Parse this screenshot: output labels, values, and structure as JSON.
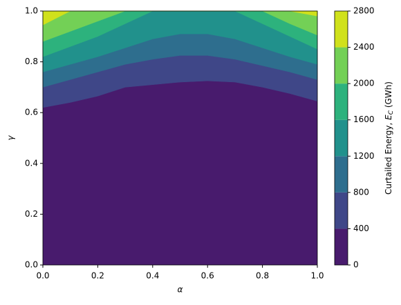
{
  "chart_data": {
    "type": "contour",
    "xlabel": "α",
    "ylabel": "γ",
    "colorbar_label": [
      "Curtailed Energy, ",
      "E",
      "C",
      " (GWh)"
    ],
    "x": [
      0,
      0.1,
      0.2,
      0.3,
      0.4,
      0.5,
      0.6,
      0.7,
      0.8,
      0.9,
      1.0
    ],
    "levels": [
      0,
      400,
      800,
      1200,
      1600,
      2000,
      2400,
      2800
    ],
    "colors": [
      "#481b6d",
      "#3f4788",
      "#2e6e8e",
      "#21918c",
      "#2db27d",
      "#73d056",
      "#d0e11c"
    ],
    "contours": [
      {
        "values": [
          0.62,
          0.64,
          0.665,
          0.7,
          0.71,
          0.72,
          0.725,
          0.72,
          0.7,
          0.675,
          0.645
        ]
      },
      {
        "values": [
          0.7,
          0.73,
          0.76,
          0.79,
          0.81,
          0.825,
          0.825,
          0.81,
          0.785,
          0.76,
          0.73
        ]
      },
      {
        "values": [
          0.76,
          0.79,
          0.82,
          0.855,
          0.89,
          0.91,
          0.91,
          0.89,
          0.855,
          0.82,
          0.79
        ]
      },
      {
        "values": [
          0.82,
          0.86,
          0.9,
          0.95,
          1,
          1,
          1,
          1,
          0.95,
          0.9,
          0.85
        ]
      },
      {
        "values": [
          0.88,
          0.92,
          0.96,
          1,
          1,
          1,
          1,
          1,
          1,
          0.95,
          0.905
        ]
      },
      {
        "values": [
          0.945,
          1,
          1,
          1,
          1,
          1,
          1,
          1,
          1,
          1,
          0.98
        ]
      }
    ],
    "xlim": [
      0,
      1
    ],
    "ylim": [
      0,
      1
    ],
    "xticks": [
      {
        "value": 0,
        "label": "0.0"
      },
      {
        "value": 0.2,
        "label": "0.2"
      },
      {
        "value": 0.4,
        "label": "0.4"
      },
      {
        "value": 0.6,
        "label": "0.6"
      },
      {
        "value": 0.8,
        "label": "0.8"
      },
      {
        "value": 1,
        "label": "1.0"
      }
    ],
    "yticks": [
      {
        "value": 0,
        "label": "0.0"
      },
      {
        "value": 0.2,
        "label": "0.2"
      },
      {
        "value": 0.4,
        "label": "0.4"
      },
      {
        "value": 0.6,
        "label": "0.6"
      },
      {
        "value": 0.8,
        "label": "0.8"
      },
      {
        "value": 1,
        "label": "1.0"
      }
    ]
  }
}
